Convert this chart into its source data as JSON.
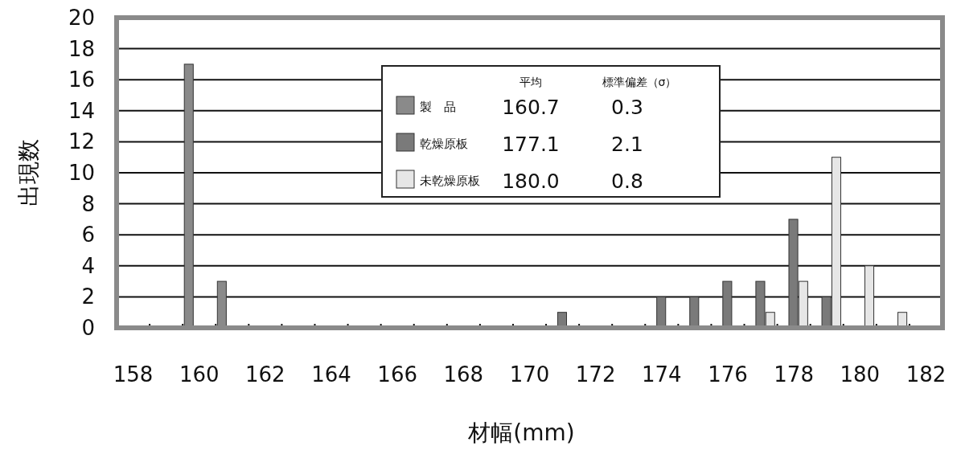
{
  "chart_data": {
    "type": "bar",
    "xlabel": "材幅(mm)",
    "ylabel": "出現数",
    "categories": [
      "158",
      null,
      "160",
      null,
      "162",
      null,
      "164",
      null,
      "166",
      null,
      "168",
      null,
      "170",
      null,
      "172",
      null,
      "174",
      null,
      "176",
      null,
      "178",
      null,
      "180",
      null,
      "182"
    ],
    "series": [
      {
        "name": "製　品",
        "color": "#8a8a8a",
        "values": [
          0,
          0,
          17,
          3,
          0,
          0,
          0,
          0,
          0,
          0,
          0,
          0,
          0,
          0,
          0,
          0,
          0,
          0,
          0,
          0,
          0,
          0,
          0,
          0,
          0
        ]
      },
      {
        "name": "乾燥原板",
        "color": "#7a7a7a",
        "values": [
          0,
          0,
          0,
          0,
          0,
          0,
          0,
          0,
          0,
          0,
          0,
          0,
          0,
          1,
          0,
          0,
          2,
          2,
          3,
          3,
          7,
          2,
          0,
          0,
          0
        ]
      },
      {
        "name": "未乾燥原板",
        "color": "#e6e6e6",
        "values": [
          0,
          0,
          0,
          0,
          0,
          0,
          0,
          0,
          0,
          0,
          0,
          0,
          0,
          0,
          0,
          0,
          0,
          0,
          0,
          1,
          3,
          11,
          4,
          1,
          0
        ]
      }
    ],
    "ylim": [
      0,
      20
    ],
    "yticks": [
      0,
      2,
      4,
      6,
      8,
      10,
      12,
      14,
      16,
      18,
      20
    ],
    "grid": "y",
    "legend": "top",
    "annotations": [
      "平均",
      "標準偏差（σ）",
      "160.7",
      "0.3",
      "177.1",
      "2.1",
      "180.0",
      "0.8"
    ]
  }
}
